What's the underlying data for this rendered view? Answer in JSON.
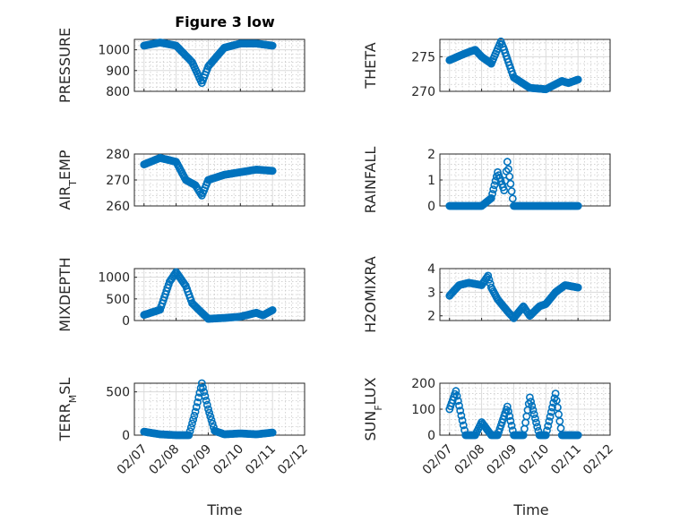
{
  "figure": {
    "title": "Figure 3 low",
    "xlabel_left": "Time",
    "xlabel_right": "Time"
  },
  "colors": {
    "marker": "#0072BD"
  },
  "chart_data": [
    {
      "type": "scatter",
      "ylabel": "PRESSURE",
      "ylim": [
        800,
        1050
      ],
      "yticks": [
        800,
        900,
        1000
      ],
      "x": [
        0.0,
        0.5,
        1.0,
        1.5,
        1.8,
        2.0,
        2.5,
        3.0,
        3.5,
        4.0
      ],
      "y": [
        1020,
        1035,
        1020,
        940,
        840,
        920,
        1010,
        1030,
        1030,
        1020
      ]
    },
    {
      "type": "scatter",
      "ylabel": "THETA",
      "ylim": [
        270,
        277.5
      ],
      "yticks": [
        270,
        275
      ],
      "x": [
        0.0,
        0.5,
        0.8,
        1.0,
        1.3,
        1.6,
        1.7,
        2.0,
        2.5,
        3.0,
        3.5,
        3.7,
        4.0
      ],
      "y": [
        274.5,
        275.5,
        276.0,
        275.0,
        274.0,
        277.2,
        276.0,
        272.0,
        270.5,
        270.3,
        271.5,
        271.2,
        271.7
      ]
    },
    {
      "type": "scatter",
      "ylabel": "AIR_TEMP",
      "ylim": [
        260,
        280
      ],
      "yticks": [
        260,
        270,
        280
      ],
      "x": [
        0.0,
        0.5,
        1.0,
        1.3,
        1.6,
        1.8,
        2.0,
        2.5,
        3.0,
        3.5,
        4.0
      ],
      "y": [
        276,
        278.5,
        277,
        270,
        268,
        264,
        270,
        272,
        273,
        274,
        273.5
      ]
    },
    {
      "type": "scatter",
      "ylabel": "RAINFALL",
      "ylim": [
        0,
        2
      ],
      "yticks": [
        0,
        1,
        2
      ],
      "x": [
        0.0,
        1.0,
        1.3,
        1.5,
        1.7,
        1.8,
        2.0,
        3.0,
        4.0
      ],
      "y": [
        0,
        0,
        0.3,
        1.3,
        0.6,
        1.7,
        0,
        0,
        0
      ]
    },
    {
      "type": "scatter",
      "ylabel": "MIXDEPTH",
      "ylim": [
        0,
        1200
      ],
      "yticks": [
        0,
        500,
        1000
      ],
      "x": [
        0.0,
        0.5,
        0.8,
        1.0,
        1.3,
        1.5,
        1.8,
        2.0,
        2.5,
        3.0,
        3.5,
        3.7,
        4.0
      ],
      "y": [
        130,
        250,
        900,
        1120,
        800,
        400,
        180,
        40,
        60,
        90,
        180,
        120,
        240
      ]
    },
    {
      "type": "scatter",
      "ylabel": "H2OMIXRA",
      "ylim": [
        1.8,
        4
      ],
      "yticks": [
        2,
        3,
        4
      ],
      "x": [
        0.0,
        0.3,
        0.6,
        1.0,
        1.2,
        1.3,
        1.5,
        1.8,
        2.0,
        2.3,
        2.5,
        2.8,
        3.0,
        3.3,
        3.6,
        4.0
      ],
      "y": [
        2.85,
        3.3,
        3.4,
        3.3,
        3.7,
        3.2,
        2.7,
        2.2,
        1.9,
        2.4,
        2.0,
        2.4,
        2.5,
        3.0,
        3.3,
        3.2
      ]
    },
    {
      "type": "scatter",
      "ylabel": "TERR_MSL",
      "ylim": [
        0,
        600
      ],
      "yticks": [
        0,
        500
      ],
      "x": [
        0.0,
        0.5,
        1.0,
        1.4,
        1.6,
        1.8,
        2.0,
        2.2,
        2.5,
        3.0,
        3.5,
        4.0
      ],
      "y": [
        40,
        10,
        0,
        0,
        270,
        600,
        300,
        50,
        10,
        20,
        10,
        30
      ]
    },
    {
      "type": "scatter",
      "ylabel": "SUN_FLUX",
      "ylim": [
        0,
        200
      ],
      "yticks": [
        0,
        100,
        200
      ],
      "x": [
        0.0,
        0.2,
        0.5,
        0.8,
        1.0,
        1.3,
        1.5,
        1.8,
        2.0,
        2.3,
        2.5,
        2.8,
        3.0,
        3.3,
        3.5,
        3.8,
        4.0
      ],
      "y": [
        100,
        170,
        0,
        0,
        50,
        0,
        0,
        110,
        0,
        0,
        145,
        0,
        0,
        160,
        0,
        0,
        0
      ]
    }
  ]
}
